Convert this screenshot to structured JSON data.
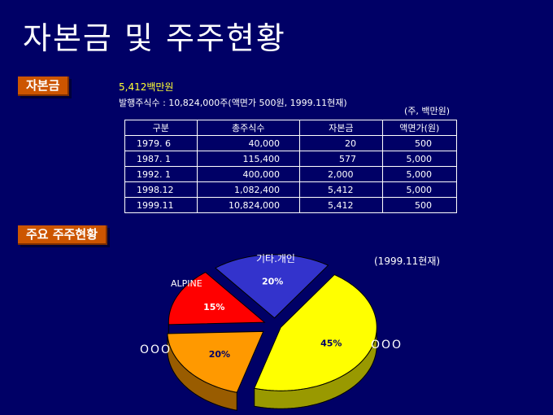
{
  "title": "자본금 및 주주현황",
  "capital": {
    "tag": "자본금",
    "value": "5,412백만원",
    "shares_line": "발행주식수 : 10,824,000주(액면가 500원, 1999.11현재)",
    "unit_note": "(주, 백만원)",
    "columns": [
      "구분",
      "총주식수",
      "자본금",
      "액면가(원)"
    ],
    "rows": [
      [
        "1979.  6",
        "40,000",
        "20",
        "500"
      ],
      [
        "1987.  1",
        "115,400",
        "577",
        "5,000"
      ],
      [
        "1992.  1",
        "400,000",
        "2,000",
        "5,000"
      ],
      [
        "1998.12",
        "1,082,400",
        "5,412",
        "5,000"
      ],
      [
        "1999.11",
        "10,824,000",
        "5,412",
        "500"
      ]
    ]
  },
  "shareholders": {
    "tag": "주요 주주현황",
    "date_note": "(1999.11현재)",
    "chart_data": {
      "type": "pie",
      "slices": [
        {
          "label": "OOO",
          "percent": 45,
          "pct_label": "45%",
          "color": "#ffff00"
        },
        {
          "label": "OOO",
          "percent": 20,
          "pct_label": "20%",
          "color": "#ff9900"
        },
        {
          "label": "ALPINE",
          "percent": 15,
          "pct_label": "15%",
          "color": "#ff0000"
        },
        {
          "label": "기타.개인",
          "percent": 20,
          "pct_label": "20%",
          "color": "#3333cc"
        }
      ]
    }
  }
}
